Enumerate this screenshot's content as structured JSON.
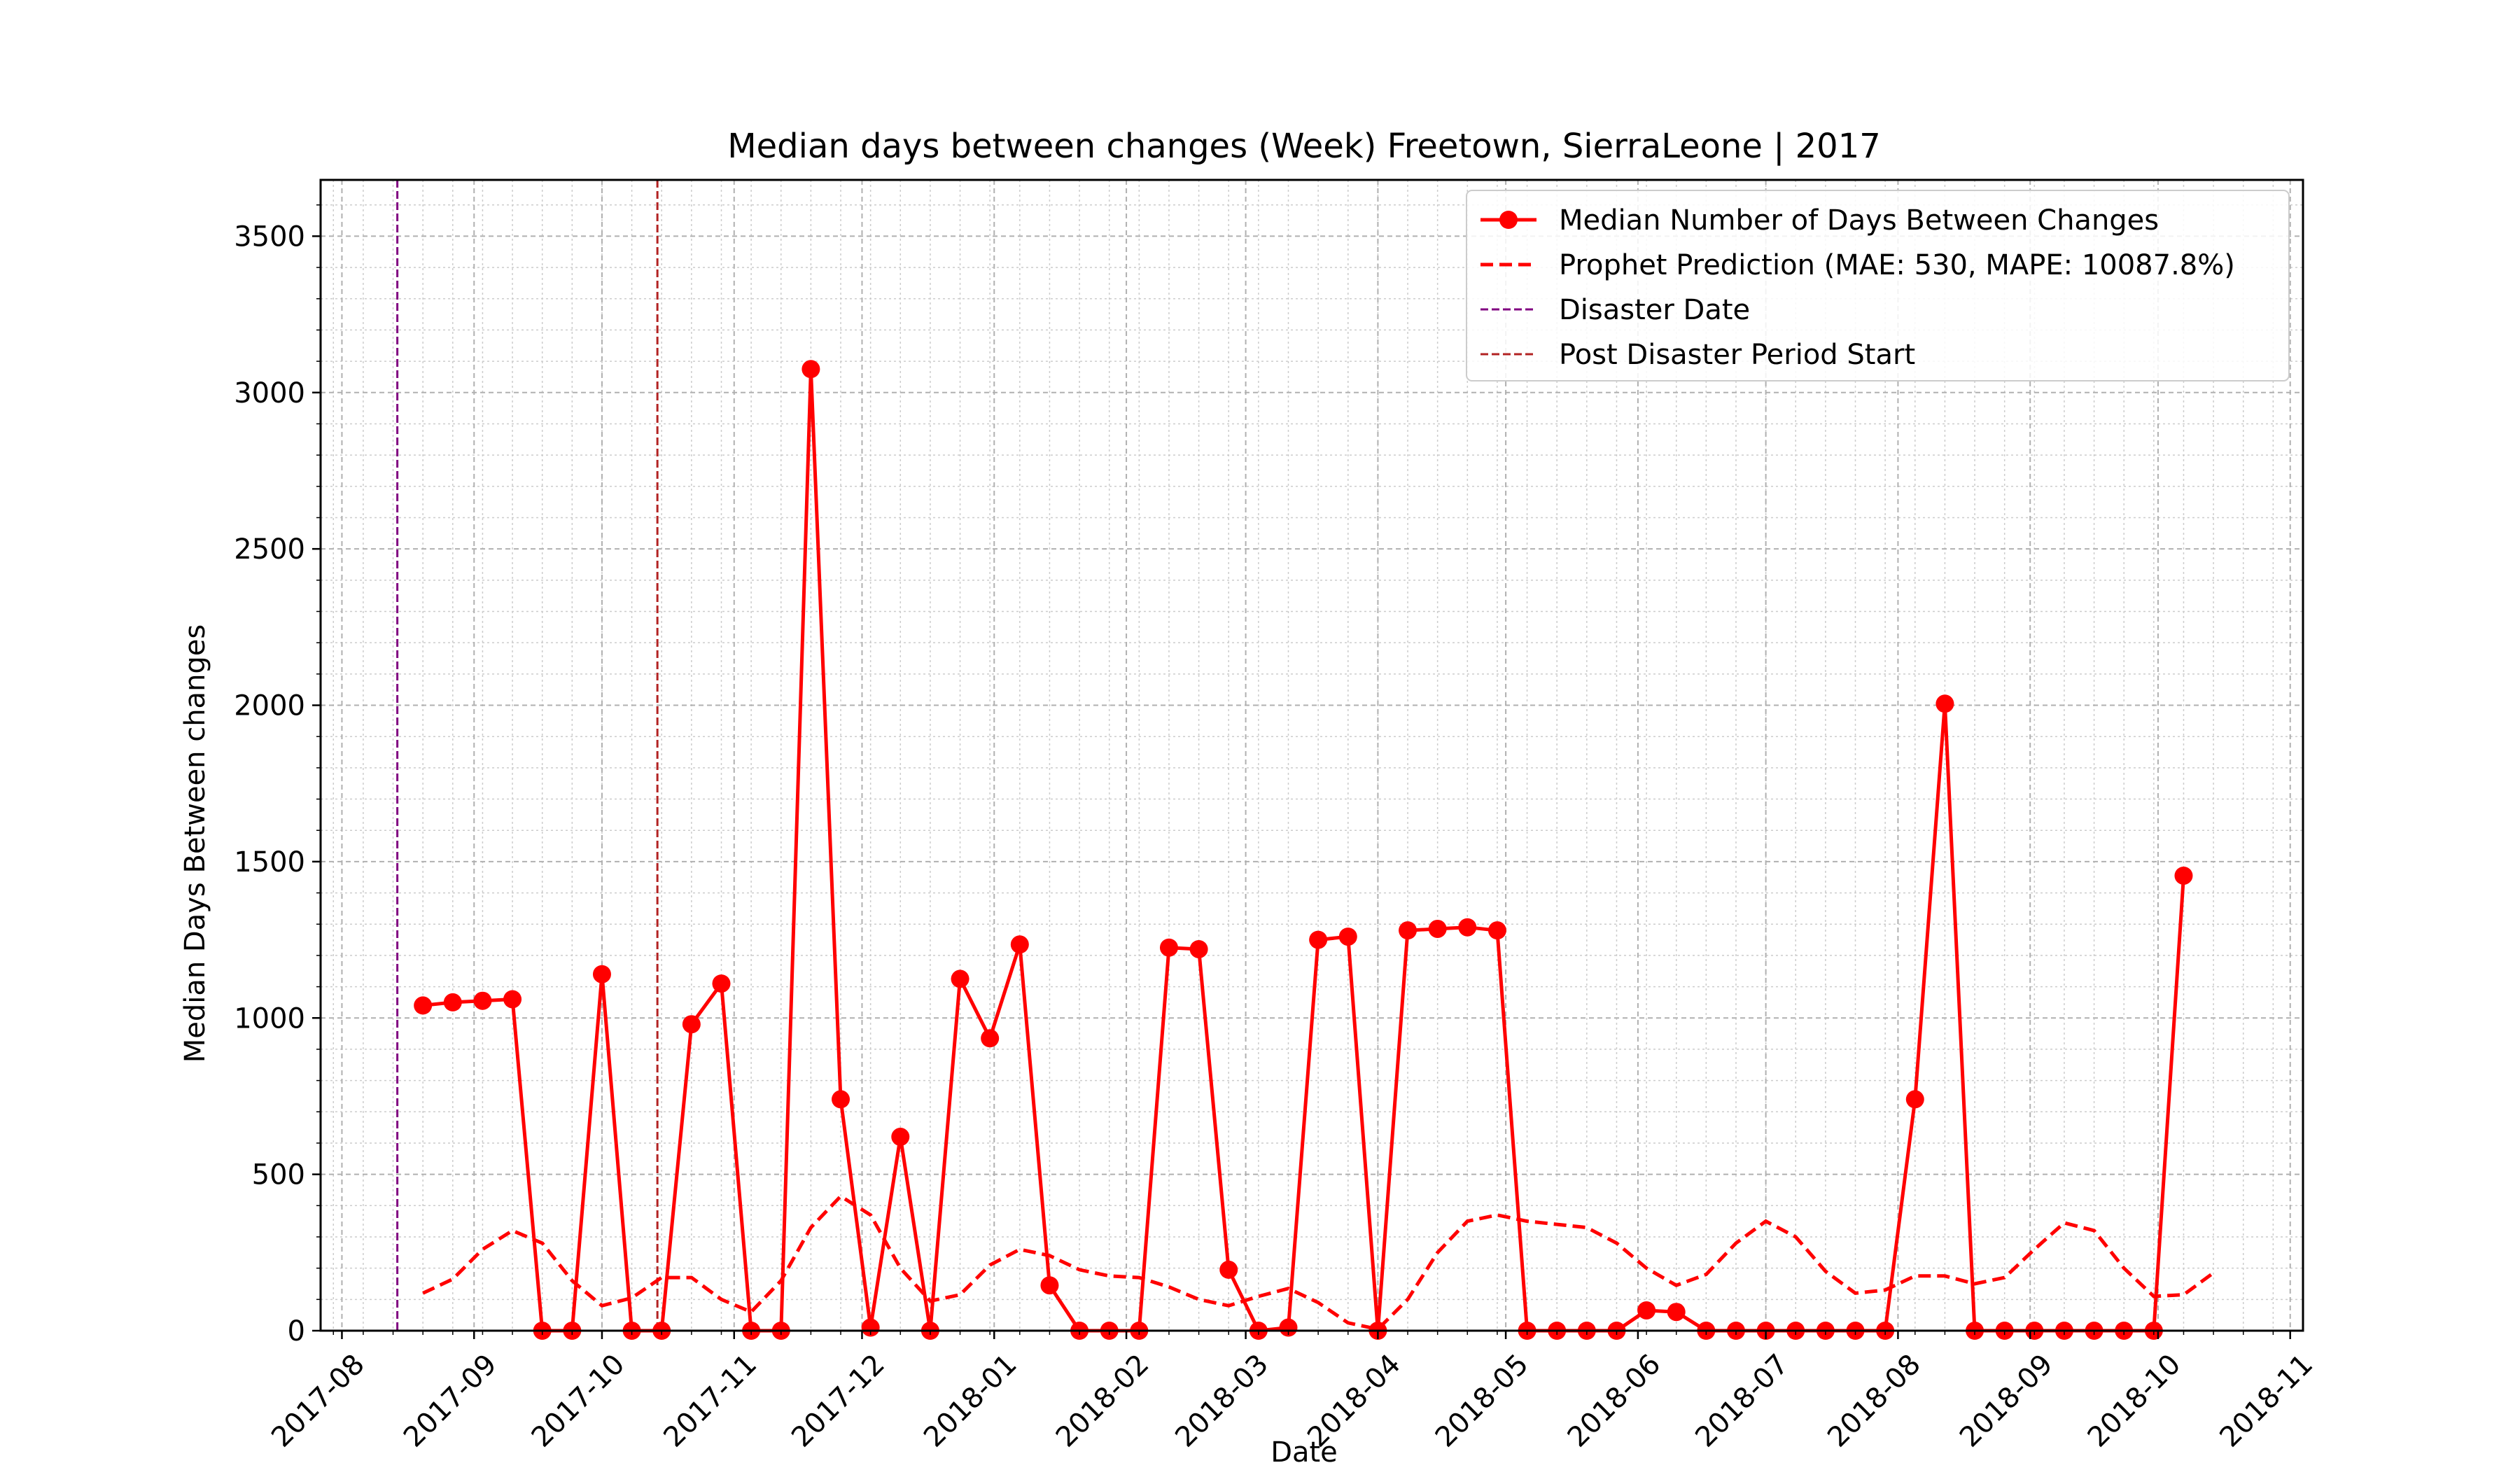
{
  "chart_data": {
    "type": "line",
    "title": "Median days between changes (Week) Freetown, SierraLeone | 2017",
    "xlabel": "Date",
    "ylabel": "Median Days Between changes",
    "x_range": [
      "2017-07-27",
      "2018-11-04"
    ],
    "ylim": [
      0,
      3680
    ],
    "x_ticks": [
      "2017-08",
      "2017-09",
      "2017-10",
      "2017-11",
      "2017-12",
      "2018-01",
      "2018-02",
      "2018-03",
      "2018-04",
      "2018-05",
      "2018-06",
      "2018-07",
      "2018-08",
      "2018-09",
      "2018-10",
      "2018-11"
    ],
    "y_ticks": [
      0,
      500,
      1000,
      1500,
      2000,
      2500,
      3000,
      3500
    ],
    "grid": true,
    "legend_position": "top-right",
    "series": [
      {
        "name": "Median Number of Days Between Changes",
        "color": "#ff0000",
        "style": "solid-with-markers",
        "x": [
          "2017-08-20",
          "2017-08-27",
          "2017-09-03",
          "2017-09-10",
          "2017-09-17",
          "2017-09-24",
          "2017-10-01",
          "2017-10-08",
          "2017-10-15",
          "2017-10-22",
          "2017-10-29",
          "2017-11-05",
          "2017-11-12",
          "2017-11-19",
          "2017-11-26",
          "2017-12-03",
          "2017-12-10",
          "2017-12-17",
          "2017-12-24",
          "2017-12-31",
          "2018-01-07",
          "2018-01-14",
          "2018-01-21",
          "2018-01-28",
          "2018-02-04",
          "2018-02-11",
          "2018-02-18",
          "2018-02-25",
          "2018-03-04",
          "2018-03-11",
          "2018-03-18",
          "2018-03-25",
          "2018-04-01",
          "2018-04-08",
          "2018-04-15",
          "2018-04-22",
          "2018-04-29",
          "2018-05-06",
          "2018-05-13",
          "2018-05-20",
          "2018-05-27",
          "2018-06-03",
          "2018-06-10",
          "2018-06-17",
          "2018-06-24",
          "2018-07-01",
          "2018-07-08",
          "2018-07-15",
          "2018-07-22",
          "2018-07-29",
          "2018-08-05",
          "2018-08-12",
          "2018-08-19",
          "2018-08-26",
          "2018-09-02",
          "2018-09-09",
          "2018-09-16",
          "2018-09-23",
          "2018-09-30",
          "2018-10-07"
        ],
        "y": [
          1040,
          1050,
          1055,
          1060,
          0,
          0,
          1140,
          0,
          0,
          980,
          1110,
          0,
          0,
          3075,
          740,
          10,
          620,
          0,
          1125,
          935,
          1235,
          145,
          0,
          0,
          0,
          1225,
          1220,
          195,
          0,
          10,
          1250,
          1260,
          0,
          1280,
          1285,
          1290,
          1280,
          0,
          0,
          0,
          0,
          65,
          60,
          0,
          0,
          0,
          0,
          0,
          0,
          0,
          740,
          2005,
          0,
          0,
          0,
          0,
          0,
          0,
          0,
          1455
        ]
      },
      {
        "name": "Prophet Prediction (MAE: 530, MAPE: 10087.8%)",
        "color": "#ff0000",
        "style": "dashed",
        "x": [
          "2017-08-20",
          "2017-08-27",
          "2017-09-03",
          "2017-09-10",
          "2017-09-17",
          "2017-09-24",
          "2017-10-01",
          "2017-10-08",
          "2017-10-15",
          "2017-10-22",
          "2017-10-29",
          "2017-11-05",
          "2017-11-12",
          "2017-11-19",
          "2017-11-26",
          "2017-12-03",
          "2017-12-10",
          "2017-12-17",
          "2017-12-24",
          "2017-12-31",
          "2018-01-07",
          "2018-01-14",
          "2018-01-21",
          "2018-01-28",
          "2018-02-04",
          "2018-02-11",
          "2018-02-18",
          "2018-02-25",
          "2018-03-04",
          "2018-03-11",
          "2018-03-18",
          "2018-03-25",
          "2018-04-01",
          "2018-04-08",
          "2018-04-15",
          "2018-04-22",
          "2018-04-29",
          "2018-05-06",
          "2018-05-13",
          "2018-05-20",
          "2018-05-27",
          "2018-06-03",
          "2018-06-10",
          "2018-06-17",
          "2018-06-24",
          "2018-07-01",
          "2018-07-08",
          "2018-07-15",
          "2018-07-22",
          "2018-07-29",
          "2018-08-05",
          "2018-08-12",
          "2018-08-19",
          "2018-08-26",
          "2018-09-02",
          "2018-09-09",
          "2018-09-16",
          "2018-09-23",
          "2018-09-30",
          "2018-10-07",
          "2018-10-14"
        ],
        "y": [
          120,
          165,
          260,
          320,
          280,
          160,
          80,
          105,
          170,
          170,
          100,
          60,
          160,
          330,
          430,
          370,
          200,
          95,
          115,
          210,
          260,
          240,
          195,
          175,
          170,
          140,
          100,
          80,
          110,
          135,
          90,
          25,
          5,
          100,
          250,
          350,
          370,
          350,
          340,
          330,
          280,
          200,
          145,
          180,
          280,
          350,
          300,
          190,
          120,
          130,
          175,
          175,
          150,
          170,
          260,
          345,
          320,
          200,
          110,
          115,
          185
        ]
      }
    ],
    "vlines": [
      {
        "name": "Disaster Date",
        "x": "2017-08-14",
        "color": "#800080"
      },
      {
        "name": "Post Disaster Period Start",
        "x": "2017-10-14",
        "color": "#b22222"
      }
    ]
  }
}
